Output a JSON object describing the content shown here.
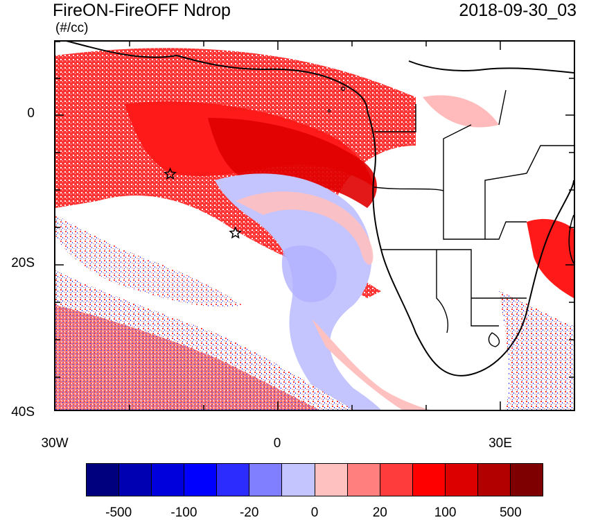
{
  "title": "FireON-FireOFF Ndrop",
  "datetime": "2018-09-30_03",
  "units": "(#/cc)",
  "latitude_labels": [
    {
      "lat": 0,
      "label": "0"
    },
    {
      "lat": -20,
      "label": "20S"
    },
    {
      "lat": -40,
      "label": "40S"
    }
  ],
  "longitude_labels": [
    {
      "lon": -30,
      "label": "30W"
    },
    {
      "lon": 0,
      "label": "0"
    },
    {
      "lon": 30,
      "label": "30E"
    }
  ],
  "map_extent": {
    "lon_min": -30,
    "lon_max": 40,
    "lat_min": -40,
    "lat_max": 10
  },
  "markers": [
    {
      "name": "star-marker",
      "lon": -14.5,
      "lat": -8.0
    },
    {
      "name": "star-marker",
      "lon": -5.7,
      "lat": -16.0
    }
  ],
  "colorbar": {
    "colors": [
      "#00007f",
      "#0000b2",
      "#0000dd",
      "#0000ff",
      "#2c2cff",
      "#7f7fff",
      "#c4c4ff",
      "#ffc0c0",
      "#ff7f7f",
      "#ff3c3c",
      "#ff0000",
      "#dd0000",
      "#b20000",
      "#7f0000"
    ],
    "labels": [
      "-500",
      "-100",
      "-20",
      "0",
      "20",
      "100",
      "500"
    ]
  }
}
